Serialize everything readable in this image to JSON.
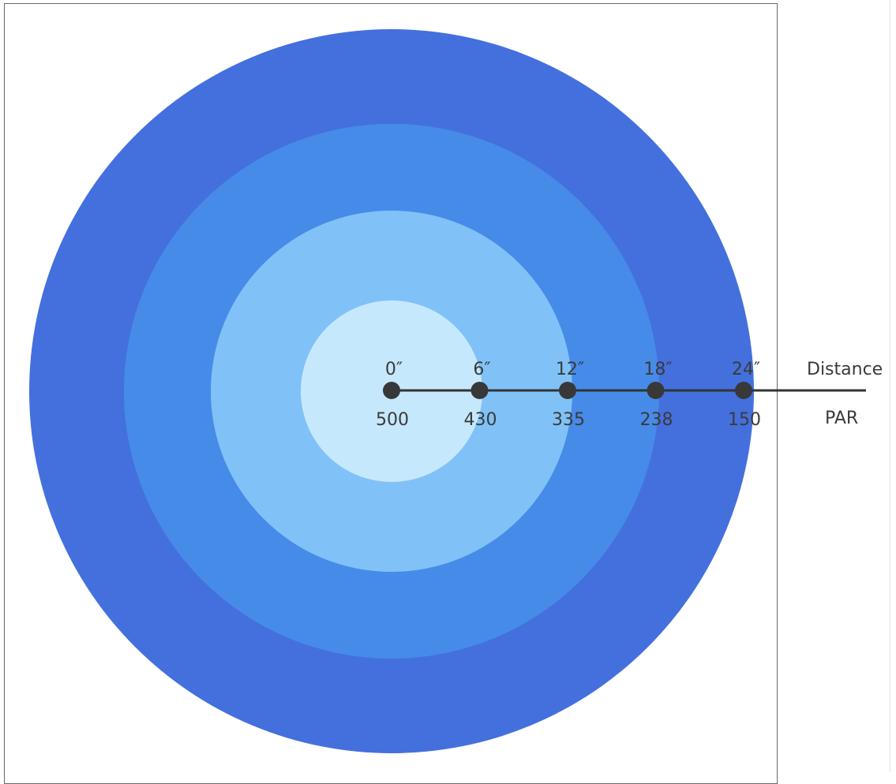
{
  "diagram": {
    "rings": [
      {
        "name": "outer-ring",
        "color": "#4470de"
      },
      {
        "name": "third-ring",
        "color": "#478be9"
      },
      {
        "name": "second-ring",
        "color": "#80c2f7"
      },
      {
        "name": "center-ring",
        "color": "#c6e8fd"
      }
    ],
    "line_color": "#333333",
    "marker_color": "#383838",
    "points": [
      {
        "distance": "0″",
        "par": "500"
      },
      {
        "distance": "6″",
        "par": "430"
      },
      {
        "distance": "12″",
        "par": "335"
      },
      {
        "distance": "18″",
        "par": "238"
      },
      {
        "distance": "24″",
        "par": "150"
      }
    ],
    "row_labels": {
      "distance": "Distance",
      "par": "PAR"
    }
  }
}
